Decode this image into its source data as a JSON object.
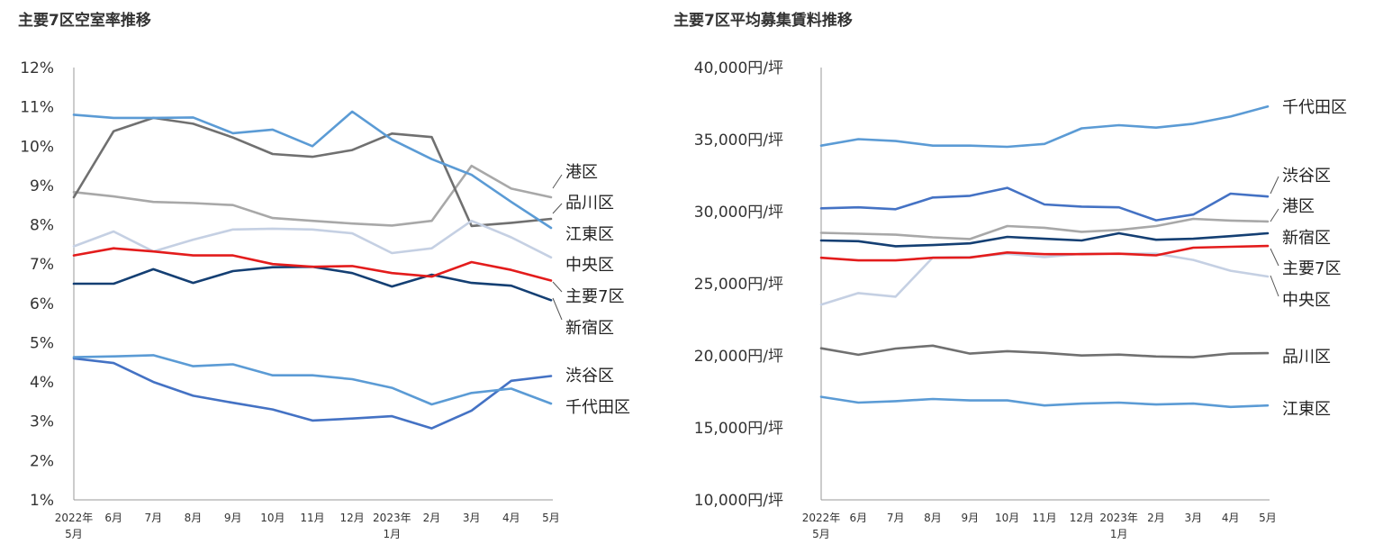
{
  "chart_data": [
    {
      "type": "line",
      "title": "主要7区空室率推移",
      "ylim": [
        1,
        12
      ],
      "yticks": [
        "1%",
        "2%",
        "3%",
        "4%",
        "5%",
        "6%",
        "7%",
        "8%",
        "9%",
        "10%",
        "11%",
        "12%"
      ],
      "categories": [
        "2022年 5月",
        "6月",
        "7月",
        "8月",
        "9月",
        "10月",
        "11月",
        "12月",
        "2023年 1月",
        "2月",
        "3月",
        "4月",
        "5月"
      ],
      "series": [
        {
          "name": "港区",
          "color": "#a8a8a8",
          "values": [
            8.83,
            8.72,
            8.58,
            8.55,
            8.5,
            8.17,
            8.1,
            8.03,
            7.98,
            8.1,
            9.5,
            8.92,
            8.7
          ]
        },
        {
          "name": "品川区",
          "color": "#707070",
          "values": [
            8.7,
            10.38,
            10.72,
            10.57,
            10.22,
            9.8,
            9.73,
            9.9,
            10.32,
            10.23,
            7.97,
            8.05,
            8.15
          ]
        },
        {
          "name": "江東区",
          "color": "#5b9bd5",
          "values": [
            10.8,
            10.72,
            10.72,
            10.73,
            10.33,
            10.42,
            10.0,
            10.88,
            10.17,
            9.67,
            9.27,
            8.58,
            7.92
          ]
        },
        {
          "name": "中央区",
          "color": "#c5d0e3",
          "values": [
            7.45,
            7.83,
            7.32,
            7.62,
            7.88,
            7.9,
            7.88,
            7.78,
            7.28,
            7.4,
            8.1,
            7.68,
            7.17
          ]
        },
        {
          "name": "主要7区",
          "color": "#e31c1c",
          "values": [
            7.22,
            7.4,
            7.32,
            7.22,
            7.22,
            7.0,
            6.93,
            6.95,
            6.77,
            6.68,
            7.05,
            6.85,
            6.58
          ]
        },
        {
          "name": "新宿区",
          "color": "#143f73",
          "values": [
            6.5,
            6.5,
            6.87,
            6.52,
            6.82,
            6.92,
            6.93,
            6.77,
            6.43,
            6.73,
            6.52,
            6.45,
            6.08
          ]
        },
        {
          "name": "渋谷区",
          "color": "#4472c4",
          "values": [
            4.6,
            4.48,
            4.0,
            3.65,
            3.47,
            3.3,
            3.02,
            3.07,
            3.13,
            2.82,
            3.27,
            4.03,
            4.15
          ]
        },
        {
          "name": "千代田区",
          "color": "#5b9bd5",
          "values": [
            4.63,
            4.65,
            4.68,
            4.4,
            4.45,
            4.17,
            4.17,
            4.07,
            3.85,
            3.43,
            3.72,
            3.83,
            3.45
          ]
        }
      ]
    },
    {
      "type": "line",
      "title": "主要7区平均募集賃料推移",
      "ylim": [
        10000,
        40000
      ],
      "yticks": [
        "10,000円/坪",
        "15,000円/坪",
        "20,000円/坪",
        "25,000円/坪",
        "30,000円/坪",
        "35,000円/坪",
        "40,000円/坪"
      ],
      "categories": [
        "2022年 5月",
        "6月",
        "7月",
        "8月",
        "9月",
        "10月",
        "11月",
        "12月",
        "2023年 1月",
        "2月",
        "3月",
        "4月",
        "5月"
      ],
      "series": [
        {
          "name": "千代田区",
          "color": "#5b9bd5",
          "values": [
            34580,
            35030,
            34900,
            34580,
            34580,
            34500,
            34700,
            35780,
            36000,
            35830,
            36100,
            36600,
            37300
          ]
        },
        {
          "name": "渋谷区",
          "color": "#4472c4",
          "values": [
            30230,
            30300,
            30170,
            30980,
            31100,
            31650,
            30500,
            30350,
            30300,
            29400,
            29800,
            31250,
            31050
          ]
        },
        {
          "name": "港区",
          "color": "#a8a8a8",
          "values": [
            28530,
            28470,
            28400,
            28220,
            28100,
            29000,
            28880,
            28600,
            28730,
            29000,
            29500,
            29380,
            29320
          ]
        },
        {
          "name": "新宿区",
          "color": "#143f73",
          "values": [
            28000,
            27950,
            27600,
            27680,
            27800,
            28250,
            28120,
            28000,
            28500,
            28050,
            28120,
            28300,
            28500
          ]
        },
        {
          "name": "主要7区",
          "color": "#e31c1c",
          "values": [
            26800,
            26620,
            26620,
            26800,
            26820,
            27170,
            27050,
            27050,
            27080,
            26970,
            27500,
            27560,
            27620
          ]
        },
        {
          "name": "中央区",
          "color": "#c5d0e3",
          "values": [
            23550,
            24350,
            24100,
            26820,
            26850,
            27080,
            26850,
            27080,
            27080,
            27080,
            26650,
            25900,
            25500
          ]
        },
        {
          "name": "品川区",
          "color": "#707070",
          "values": [
            20520,
            20070,
            20500,
            20700,
            20150,
            20320,
            20200,
            20020,
            20080,
            19950,
            19900,
            20150,
            20180
          ]
        },
        {
          "name": "江東区",
          "color": "#5b9bd5",
          "values": [
            17150,
            16750,
            16850,
            17000,
            16900,
            16900,
            16550,
            16680,
            16750,
            16620,
            16680,
            16450,
            16550
          ]
        }
      ]
    }
  ]
}
